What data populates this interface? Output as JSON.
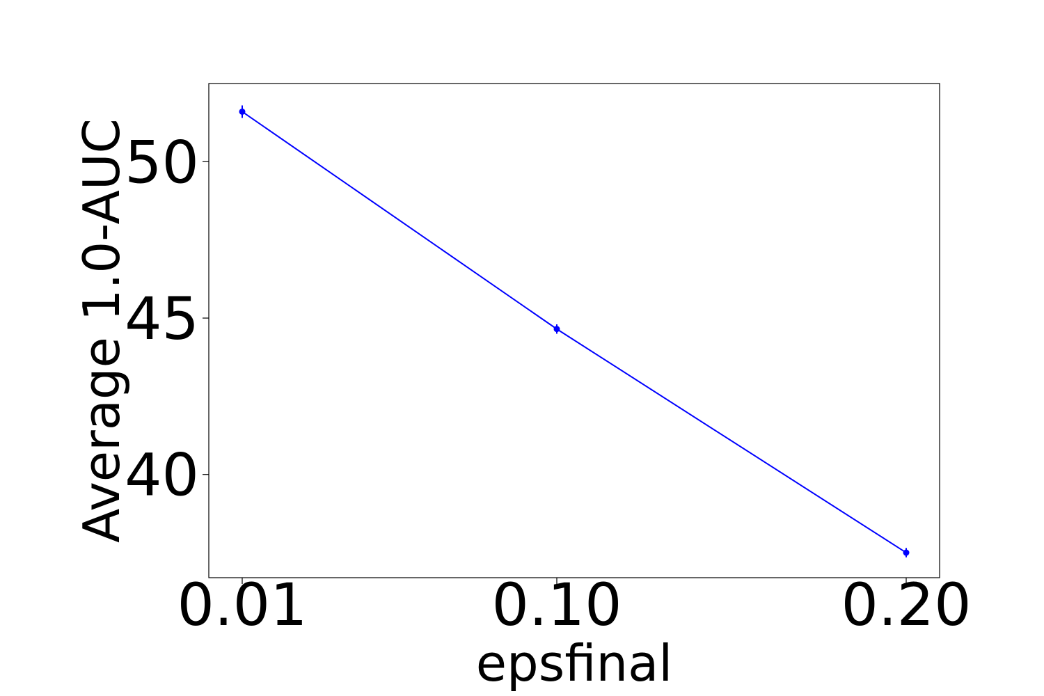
{
  "chart_data": {
    "type": "line",
    "title": "",
    "xlabel": "epsfinal",
    "ylabel": "Average 1.0-AUC",
    "x_categories": [
      "0.01",
      "0.10",
      "0.20"
    ],
    "series": [
      {
        "values": [
          51.6,
          44.65,
          37.5
        ],
        "errors": [
          0.2,
          0.15,
          0.15
        ],
        "color": "#0000ff"
      }
    ],
    "yticks": [
      40,
      45,
      50
    ],
    "ylim": [
      36.7,
      52.5
    ],
    "grid": false
  }
}
